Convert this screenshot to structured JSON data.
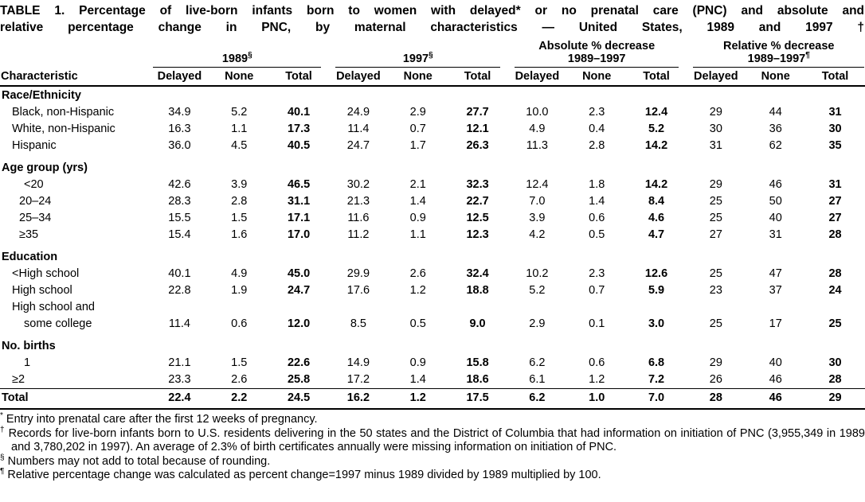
{
  "title": {
    "line1": "TABLE 1. Percentage of live-born infants born to women with delayed* or no prenatal care (PNC) and absolute and",
    "line2": "relative percentage change in PNC, by maternal characteristics — United States, 1989 and 1997 †"
  },
  "table": {
    "characteristic_header": "Characteristic",
    "groups": [
      {
        "line1": "",
        "line2": "1989",
        "marker": "§"
      },
      {
        "line1": "",
        "line2": "1997",
        "marker": "§"
      },
      {
        "line1": "Absolute % decrease",
        "line2": "1989–1997",
        "marker": ""
      },
      {
        "line1": "Relative % decrease",
        "line2": "1989–1997",
        "marker": "¶"
      }
    ],
    "subcols": [
      "Delayed",
      "None",
      "Total"
    ],
    "rows": [
      {
        "type": "section",
        "label": "Race/Ethnicity"
      },
      {
        "type": "data",
        "label": "Black, non-Hispanic",
        "indent": 1,
        "values": [
          "34.9",
          "5.2",
          "40.1",
          "24.9",
          "2.9",
          "27.7",
          "10.0",
          "2.3",
          "12.4",
          "29",
          "44",
          "31"
        ]
      },
      {
        "type": "data",
        "label": "White, non-Hispanic",
        "indent": 1,
        "values": [
          "16.3",
          "1.1",
          "17.3",
          "11.4",
          "0.7",
          "12.1",
          "4.9",
          "0.4",
          "5.2",
          "30",
          "36",
          "30"
        ]
      },
      {
        "type": "data",
        "label": "Hispanic",
        "indent": 1,
        "values": [
          "36.0",
          "4.5",
          "40.5",
          "24.7",
          "1.7",
          "26.3",
          "11.3",
          "2.8",
          "14.2",
          "31",
          "62",
          "35"
        ]
      },
      {
        "type": "section",
        "label": "Age group (yrs)"
      },
      {
        "type": "data",
        "label": "<20",
        "indent": 3,
        "values": [
          "42.6",
          "3.9",
          "46.5",
          "30.2",
          "2.1",
          "32.3",
          "12.4",
          "1.8",
          "14.2",
          "29",
          "46",
          "31"
        ]
      },
      {
        "type": "data",
        "label": "20–24",
        "indent": 2,
        "values": [
          "28.3",
          "2.8",
          "31.1",
          "21.3",
          "1.4",
          "22.7",
          "7.0",
          "1.4",
          "8.4",
          "25",
          "50",
          "27"
        ]
      },
      {
        "type": "data",
        "label": "25–34",
        "indent": 2,
        "values": [
          "15.5",
          "1.5",
          "17.1",
          "11.6",
          "0.9",
          "12.5",
          "3.9",
          "0.6",
          "4.6",
          "25",
          "40",
          "27"
        ]
      },
      {
        "type": "data",
        "label": "≥35",
        "indent": 2,
        "values": [
          "15.4",
          "1.6",
          "17.0",
          "11.2",
          "1.1",
          "12.3",
          "4.2",
          "0.5",
          "4.7",
          "27",
          "31",
          "28"
        ]
      },
      {
        "type": "section",
        "label": "Education"
      },
      {
        "type": "data",
        "label": "<High school",
        "indent": 1,
        "values": [
          "40.1",
          "4.9",
          "45.0",
          "29.9",
          "2.6",
          "32.4",
          "10.2",
          "2.3",
          "12.6",
          "25",
          "47",
          "28"
        ]
      },
      {
        "type": "data",
        "label": "High school",
        "indent": 1,
        "values": [
          "22.8",
          "1.9",
          "24.7",
          "17.6",
          "1.2",
          "18.8",
          "5.2",
          "0.7",
          "5.9",
          "23",
          "37",
          "24"
        ]
      },
      {
        "type": "data",
        "label": "High school and",
        "indent": 1,
        "values": null
      },
      {
        "type": "data",
        "label": "some college",
        "indent": 3,
        "values": [
          "11.4",
          "0.6",
          "12.0",
          "8.5",
          "0.5",
          "9.0",
          "2.9",
          "0.1",
          "3.0",
          "25",
          "17",
          "25"
        ]
      },
      {
        "type": "section",
        "label": "No. births"
      },
      {
        "type": "data",
        "label": "1",
        "indent": 3,
        "values": [
          "21.1",
          "1.5",
          "22.6",
          "14.9",
          "0.9",
          "15.8",
          "6.2",
          "0.6",
          "6.8",
          "29",
          "40",
          "30"
        ]
      },
      {
        "type": "data",
        "label": "≥2",
        "indent": 1,
        "values": [
          "23.3",
          "2.6",
          "25.8",
          "17.2",
          "1.4",
          "18.6",
          "6.1",
          "1.2",
          "7.2",
          "26",
          "46",
          "28"
        ]
      },
      {
        "type": "total",
        "label": "Total",
        "values": [
          "22.4",
          "2.2",
          "24.5",
          "16.2",
          "1.2",
          "17.5",
          "6.2",
          "1.0",
          "7.0",
          "28",
          "46",
          "29"
        ]
      }
    ]
  },
  "footnotes": [
    {
      "marker": "*",
      "text": "Entry into prenatal care after the first 12 weeks of pregnancy."
    },
    {
      "marker": "†",
      "text": "Records for live-born infants born to U.S. residents delivering in the 50 states and the District of Columbia that had information on initiation of PNC (3,955,349 in 1989 and 3,780,202 in 1997). An average of 2.3% of birth certificates annually were missing information on initiation of PNC."
    },
    {
      "marker": "§",
      "text": "Numbers may not add to total because of rounding."
    },
    {
      "marker": "¶",
      "text": "Relative percentage change was calculated as percent change=1997 minus 1989 divided by 1989 multiplied by 100."
    }
  ]
}
